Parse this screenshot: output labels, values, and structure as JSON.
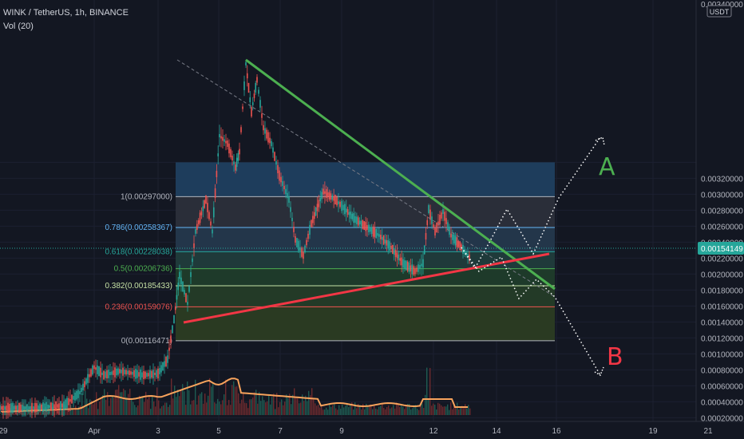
{
  "header": {
    "symbol_line": "WINK / TetherUS, 1h, BINANCE",
    "indicator_line": "Vol (20)"
  },
  "price_axis": {
    "currency_badge": "USDT",
    "top_partial_label": "0.00340000",
    "ticks": [
      "0.00320000",
      "0.00300000",
      "0.00280000",
      "0.00260000",
      "0.00240000",
      "0.00220000",
      "0.00200000",
      "0.00180000",
      "0.00160000",
      "0.00140000",
      "0.00120000",
      "0.00100000",
      "0.00080000",
      "0.00060000",
      "0.00040000",
      "0.00020000"
    ],
    "current_price": "0.00154149",
    "colors": {
      "current_price_bg": "#26a69a"
    }
  },
  "time_axis": {
    "labels": [
      "29",
      "Apr",
      "3",
      "5",
      "7",
      "9",
      "12",
      "14",
      "16",
      "19",
      "21"
    ]
  },
  "chart_data": {
    "type": "candlestick",
    "symbol": "WINK / TetherUS",
    "interval": "1h",
    "exchange": "BINANCE",
    "current_price": 0.00154149,
    "ylim": [
      0.0002,
      0.0034
    ],
    "fibonacci": {
      "levels": [
        {
          "label": "1(0.00297000)",
          "ratio": 1,
          "price": 0.00297,
          "color": "#b2b5be"
        },
        {
          "label": "0.786(0.00258367)",
          "ratio": 0.786,
          "price": 0.00258367,
          "color": "#64b5f6"
        },
        {
          "label": "0.618(0.00228038)",
          "ratio": 0.618,
          "price": 0.00228038,
          "color": "#26a69a"
        },
        {
          "label": "0.5(0.00206736)",
          "ratio": 0.5,
          "price": 0.00206736,
          "color": "#4caf50"
        },
        {
          "label": "0.382(0.00185433)",
          "ratio": 0.382,
          "price": 0.00185433,
          "color": "#c5e1a5"
        },
        {
          "label": "0.236(0.00159076)",
          "ratio": 0.236,
          "price": 0.00159076,
          "color": "#ef5350"
        },
        {
          "label": "0(0.00116471)",
          "ratio": 0,
          "price": 0.00116471,
          "color": "#b2b5be"
        }
      ],
      "zone_colors": [
        "#1e3d5c",
        "#2a2e39",
        "#23364a",
        "#1f3a3a",
        "#1e3a2a",
        "#233a27",
        "#2a3a22",
        "#4a1e24"
      ]
    },
    "trendlines": [
      {
        "name": "descending resistance",
        "color": "#4caf50"
      },
      {
        "name": "ascending support",
        "color": "#f23645"
      }
    ],
    "scenarios": [
      {
        "label": "A",
        "color": "#4caf50"
      },
      {
        "label": "B",
        "color": "#f23645"
      }
    ],
    "volume_ma_color": "#f7a35c"
  }
}
